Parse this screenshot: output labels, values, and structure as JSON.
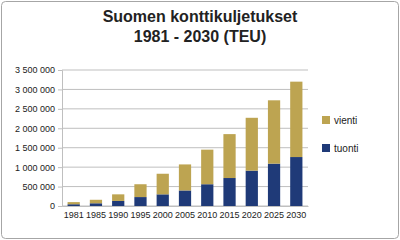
{
  "chart_data": {
    "type": "bar",
    "stacked": true,
    "title": "Suomen konttikuljetukset",
    "subtitle": "1981 - 2030 (TEU)",
    "categories": [
      "1981",
      "1985",
      "1990",
      "1995",
      "2000",
      "2005",
      "2010",
      "2015",
      "2020",
      "2025",
      "2030"
    ],
    "series": [
      {
        "name": "tuonti",
        "color": "#1f3a78",
        "values": [
          45000,
          70000,
          130000,
          230000,
          300000,
          400000,
          560000,
          720000,
          910000,
          1090000,
          1260000
        ]
      },
      {
        "name": "vienti",
        "color": "#bda451",
        "values": [
          55000,
          90000,
          170000,
          330000,
          530000,
          670000,
          890000,
          1130000,
          1360000,
          1630000,
          1940000
        ]
      }
    ],
    "ylim": [
      0,
      3500000
    ],
    "yticks": [
      0,
      {
        "value": 500000,
        "label": "500 000"
      },
      {
        "value": 1000000,
        "label": "1 000 000"
      },
      {
        "value": 1500000,
        "label": "1 500 000"
      },
      {
        "value": 2000000,
        "label": "2 000 000"
      },
      {
        "value": 2500000,
        "label": "2 500 000"
      },
      {
        "value": 3000000,
        "label": "3 000 000"
      },
      {
        "value": 3500000,
        "label": "3 500 000"
      }
    ],
    "grid": true,
    "legend": "right"
  }
}
